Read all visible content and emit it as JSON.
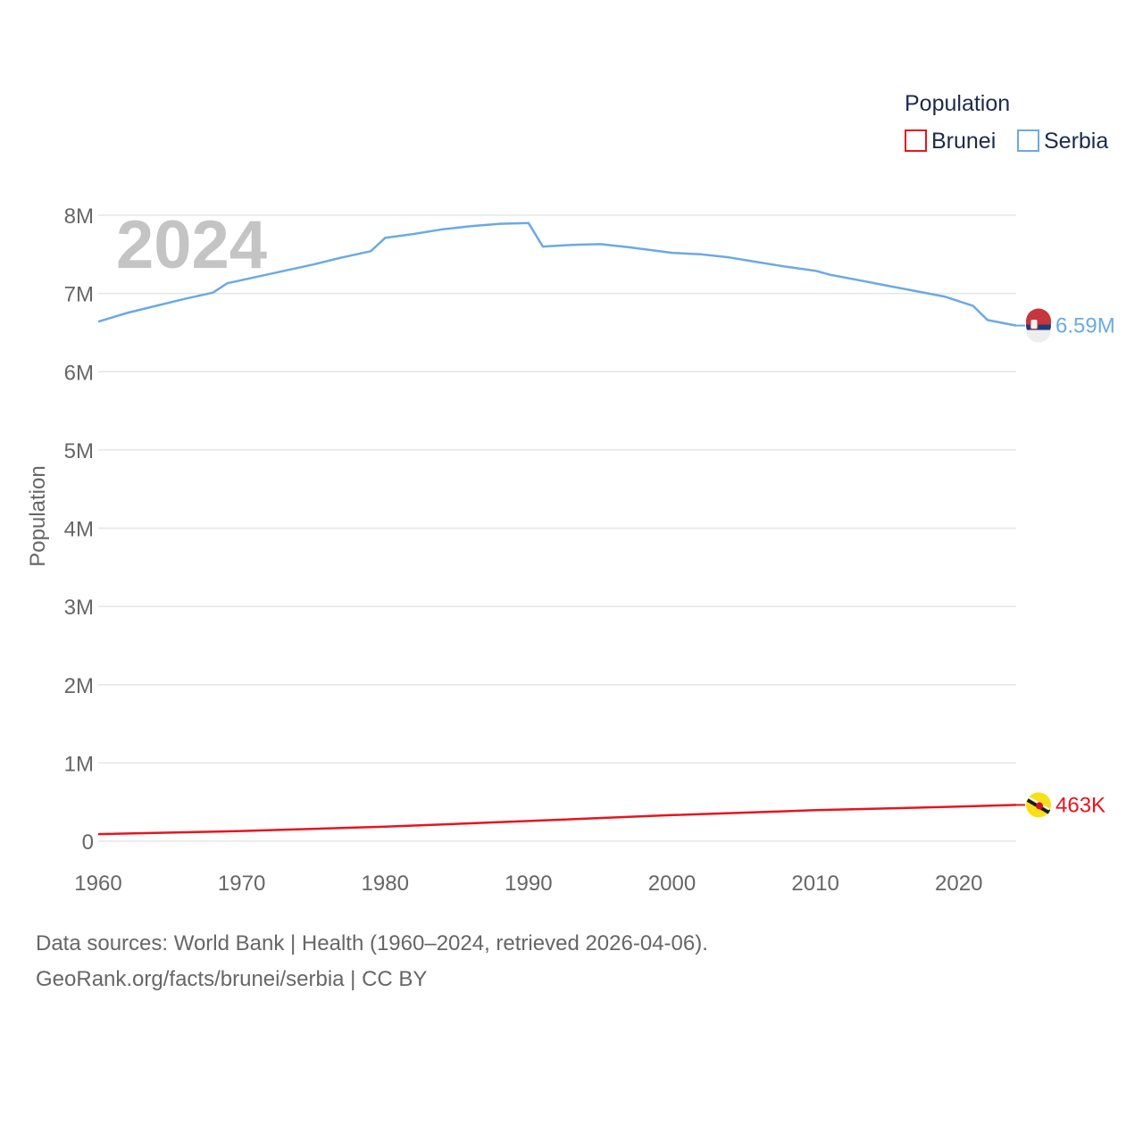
{
  "chart_data": {
    "type": "line",
    "year_label": "2024",
    "ylabel": "Population",
    "xlabel": "",
    "xlim": [
      1960,
      2024
    ],
    "ylim": [
      0,
      8000000
    ],
    "x_ticks": [
      1960,
      1970,
      1980,
      1990,
      2000,
      2010,
      2020
    ],
    "y_ticks": [
      {
        "value": 0,
        "label": "0"
      },
      {
        "value": 1000000,
        "label": "1M"
      },
      {
        "value": 2000000,
        "label": "2M"
      },
      {
        "value": 3000000,
        "label": "3M"
      },
      {
        "value": 4000000,
        "label": "4M"
      },
      {
        "value": 5000000,
        "label": "5M"
      },
      {
        "value": 6000000,
        "label": "6M"
      },
      {
        "value": 7000000,
        "label": "7M"
      },
      {
        "value": 8000000,
        "label": "8M"
      }
    ],
    "legend": {
      "title": "Population",
      "position": "top-right"
    },
    "series": [
      {
        "name": "Brunei",
        "color": "#e8141d",
        "end_label": "463K",
        "flag_icon": "brunei-flag-icon",
        "points": [
          [
            1960,
            90000
          ],
          [
            1970,
            130000
          ],
          [
            1980,
            185000
          ],
          [
            1990,
            258000
          ],
          [
            2000,
            333000
          ],
          [
            2010,
            396000
          ],
          [
            2020,
            442000
          ],
          [
            2024,
            463000
          ]
        ]
      },
      {
        "name": "Serbia",
        "color": "#6aaae4",
        "end_label": "6.59M",
        "flag_icon": "serbia-flag-icon",
        "points": [
          [
            1960,
            6640000
          ],
          [
            1962,
            6750000
          ],
          [
            1964,
            6840000
          ],
          [
            1966,
            6930000
          ],
          [
            1968,
            7010000
          ],
          [
            1969,
            7130000
          ],
          [
            1971,
            7210000
          ],
          [
            1973,
            7290000
          ],
          [
            1975,
            7370000
          ],
          [
            1977,
            7460000
          ],
          [
            1979,
            7540000
          ],
          [
            1980,
            7710000
          ],
          [
            1982,
            7760000
          ],
          [
            1984,
            7820000
          ],
          [
            1986,
            7860000
          ],
          [
            1988,
            7890000
          ],
          [
            1990,
            7900000
          ],
          [
            1991,
            7600000
          ],
          [
            1993,
            7620000
          ],
          [
            1995,
            7630000
          ],
          [
            1997,
            7590000
          ],
          [
            2000,
            7520000
          ],
          [
            2002,
            7500000
          ],
          [
            2004,
            7460000
          ],
          [
            2006,
            7400000
          ],
          [
            2008,
            7340000
          ],
          [
            2010,
            7290000
          ],
          [
            2011,
            7240000
          ],
          [
            2013,
            7170000
          ],
          [
            2015,
            7100000
          ],
          [
            2017,
            7030000
          ],
          [
            2019,
            6960000
          ],
          [
            2021,
            6840000
          ],
          [
            2022,
            6660000
          ],
          [
            2024,
            6590000
          ]
        ]
      }
    ]
  },
  "footer": {
    "line1": "Data sources: World Bank | Health (1960–2024, retrieved 2026-04-06).",
    "line2": "GeoRank.org/facts/brunei/serbia | CC BY"
  }
}
